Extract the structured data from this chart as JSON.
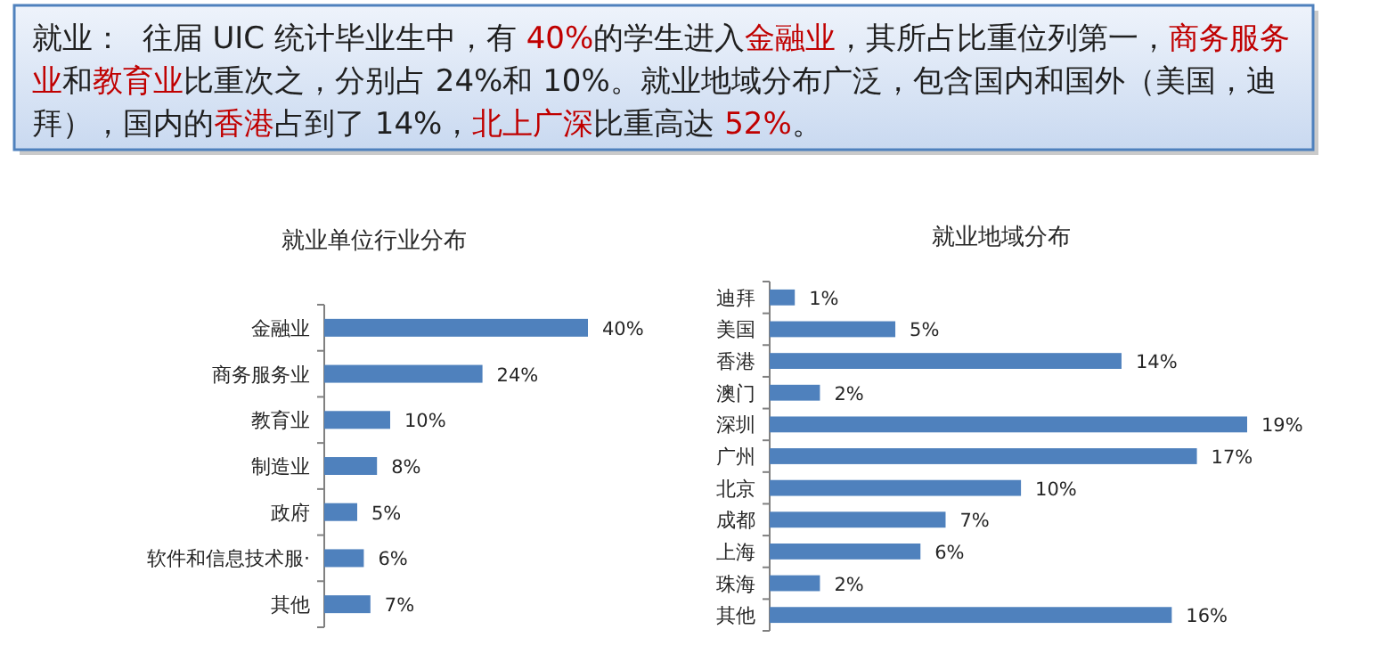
{
  "chart_data": [
    {
      "type": "other",
      "annotations": [
        "就业：  往届 UIC 统计毕业生中，有 ",
        "40%",
        "的学生进入",
        "金融业",
        "，其所占比重位列第一，",
        "商务服务业",
        "和",
        "教育业",
        "比重次之，分别占 24%和 10%。就业地域分布广泛，包含国内和国外（美国，迪拜），国内的",
        "香港",
        "占到了 14%，",
        "北上广深",
        "比重高达 ",
        "52%",
        "。"
      ],
      "colors": [
        "#1f1f1f",
        "#c00000",
        "#1f1f1f",
        "#c00000",
        "#1f1f1f",
        "#c00000",
        "#1f1f1f",
        "#c00000",
        "#1f1f1f",
        "#c00000",
        "#1f1f1f",
        "#c00000",
        "#1f1f1f",
        "#c00000",
        "#1f1f1f"
      ]
    },
    {
      "type": "bar",
      "orientation": "horizontal",
      "title": "就业单位行业分布",
      "categories": [
        "金融业",
        "商务服务业",
        "教育业",
        "制造业",
        "政府",
        "软件和信息技术服·",
        "其他"
      ],
      "values": [
        40,
        24,
        10,
        8,
        5,
        6,
        7
      ],
      "value_labels": [
        "40%",
        "24%",
        "10%",
        "8%",
        "5%",
        "6%",
        "7%"
      ],
      "color": "#4f81bd"
    },
    {
      "type": "bar",
      "orientation": "horizontal",
      "title": "就业地域分布",
      "categories": [
        "迪拜",
        "美国",
        "香港",
        "澳门",
        "深圳",
        "广州",
        "北京",
        "成都",
        "上海",
        "珠海",
        "其他"
      ],
      "values": [
        1,
        5,
        14,
        2,
        19,
        17,
        10,
        7,
        6,
        2,
        16
      ],
      "value_labels": [
        "1%",
        "5%",
        "14%",
        "2%",
        "19%",
        "17%",
        "10%",
        "7%",
        "6%",
        "2%",
        "16%"
      ],
      "color": "#4f81bd"
    }
  ]
}
